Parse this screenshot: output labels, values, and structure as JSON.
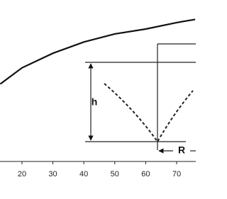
{
  "chart_data": {
    "type": "line",
    "x": [
      13,
      20,
      30,
      40,
      50,
      60,
      70,
      76
    ],
    "series": [
      {
        "color": "#111111",
        "values": [
          48,
          58,
          67,
          74,
          79,
          82,
          86,
          88
        ]
      }
    ],
    "xlim": [
      12.9,
      76.2
    ],
    "xticks": [
      20,
      30,
      40,
      50,
      60,
      70
    ],
    "ylim": [
      0,
      100
    ],
    "annotations": [
      "h",
      "R"
    ]
  }
}
